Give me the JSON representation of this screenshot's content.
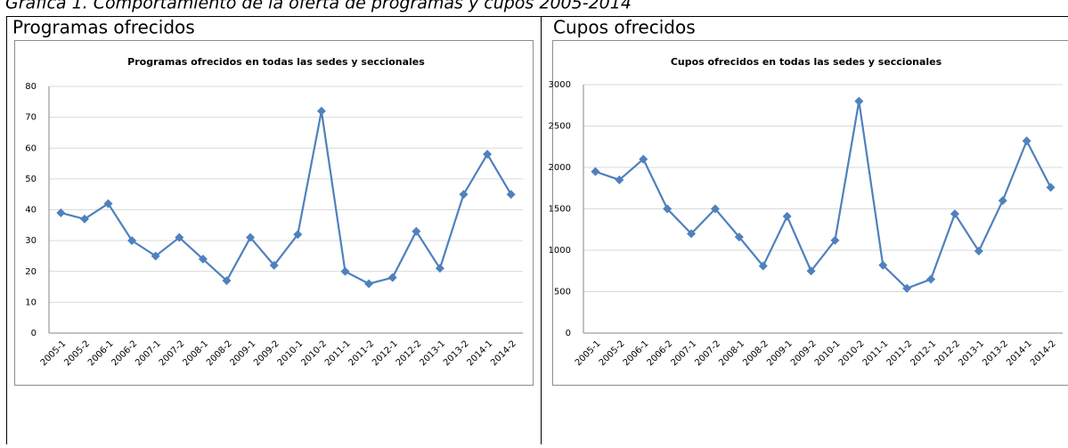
{
  "caption": "Gráfica 1. Comportamiento de la oferta de programas y cupos 2005-2014",
  "table": {
    "headers": [
      "Programas ofrecidos",
      "Cupos ofrecidos"
    ]
  },
  "chart_data": [
    {
      "type": "line",
      "title": "Programas ofrecidos en todas las sedes y seccionales",
      "categories": [
        "2005-1",
        "2005-2",
        "2006-1",
        "2006-2",
        "2007-1",
        "2007-2",
        "2008-1",
        "2008-2",
        "2009-1",
        "2009-2",
        "2010-1",
        "2010-2",
        "2011-1",
        "2011-2",
        "2012-1",
        "2012-2",
        "2013-1",
        "2013-2",
        "2014-1",
        "2014-2"
      ],
      "values": [
        39,
        37,
        42,
        30,
        25,
        31,
        24,
        17,
        31,
        22,
        32,
        72,
        20,
        16,
        18,
        33,
        21,
        45,
        58,
        45
      ],
      "color": "#4f81bd",
      "ylim": [
        0,
        80
      ],
      "yticks": [
        0,
        10,
        20,
        30,
        40,
        50,
        60,
        70,
        80
      ],
      "grid": true
    },
    {
      "type": "line",
      "title": "Cupos ofrecidos en todas las sedes y seccionales",
      "categories": [
        "2005-1",
        "2005-2",
        "2006-1",
        "2006-2",
        "2007-1",
        "2007-2",
        "2008-1",
        "2008-2",
        "2009-1",
        "2009-2",
        "2010-1",
        "2010-2",
        "2011-1",
        "2011-2",
        "2012-1",
        "2012-2",
        "2013-1",
        "2013-2",
        "2014-1",
        "2014-2"
      ],
      "values": [
        1950,
        1850,
        2100,
        1500,
        1200,
        1500,
        1160,
        810,
        1410,
        750,
        1120,
        2800,
        820,
        540,
        650,
        1440,
        990,
        1600,
        2320,
        1760
      ],
      "color": "#4f81bd",
      "ylim": [
        0,
        3000
      ],
      "yticks": [
        0,
        500,
        1000,
        1500,
        2000,
        2500,
        3000
      ],
      "grid": true
    }
  ]
}
